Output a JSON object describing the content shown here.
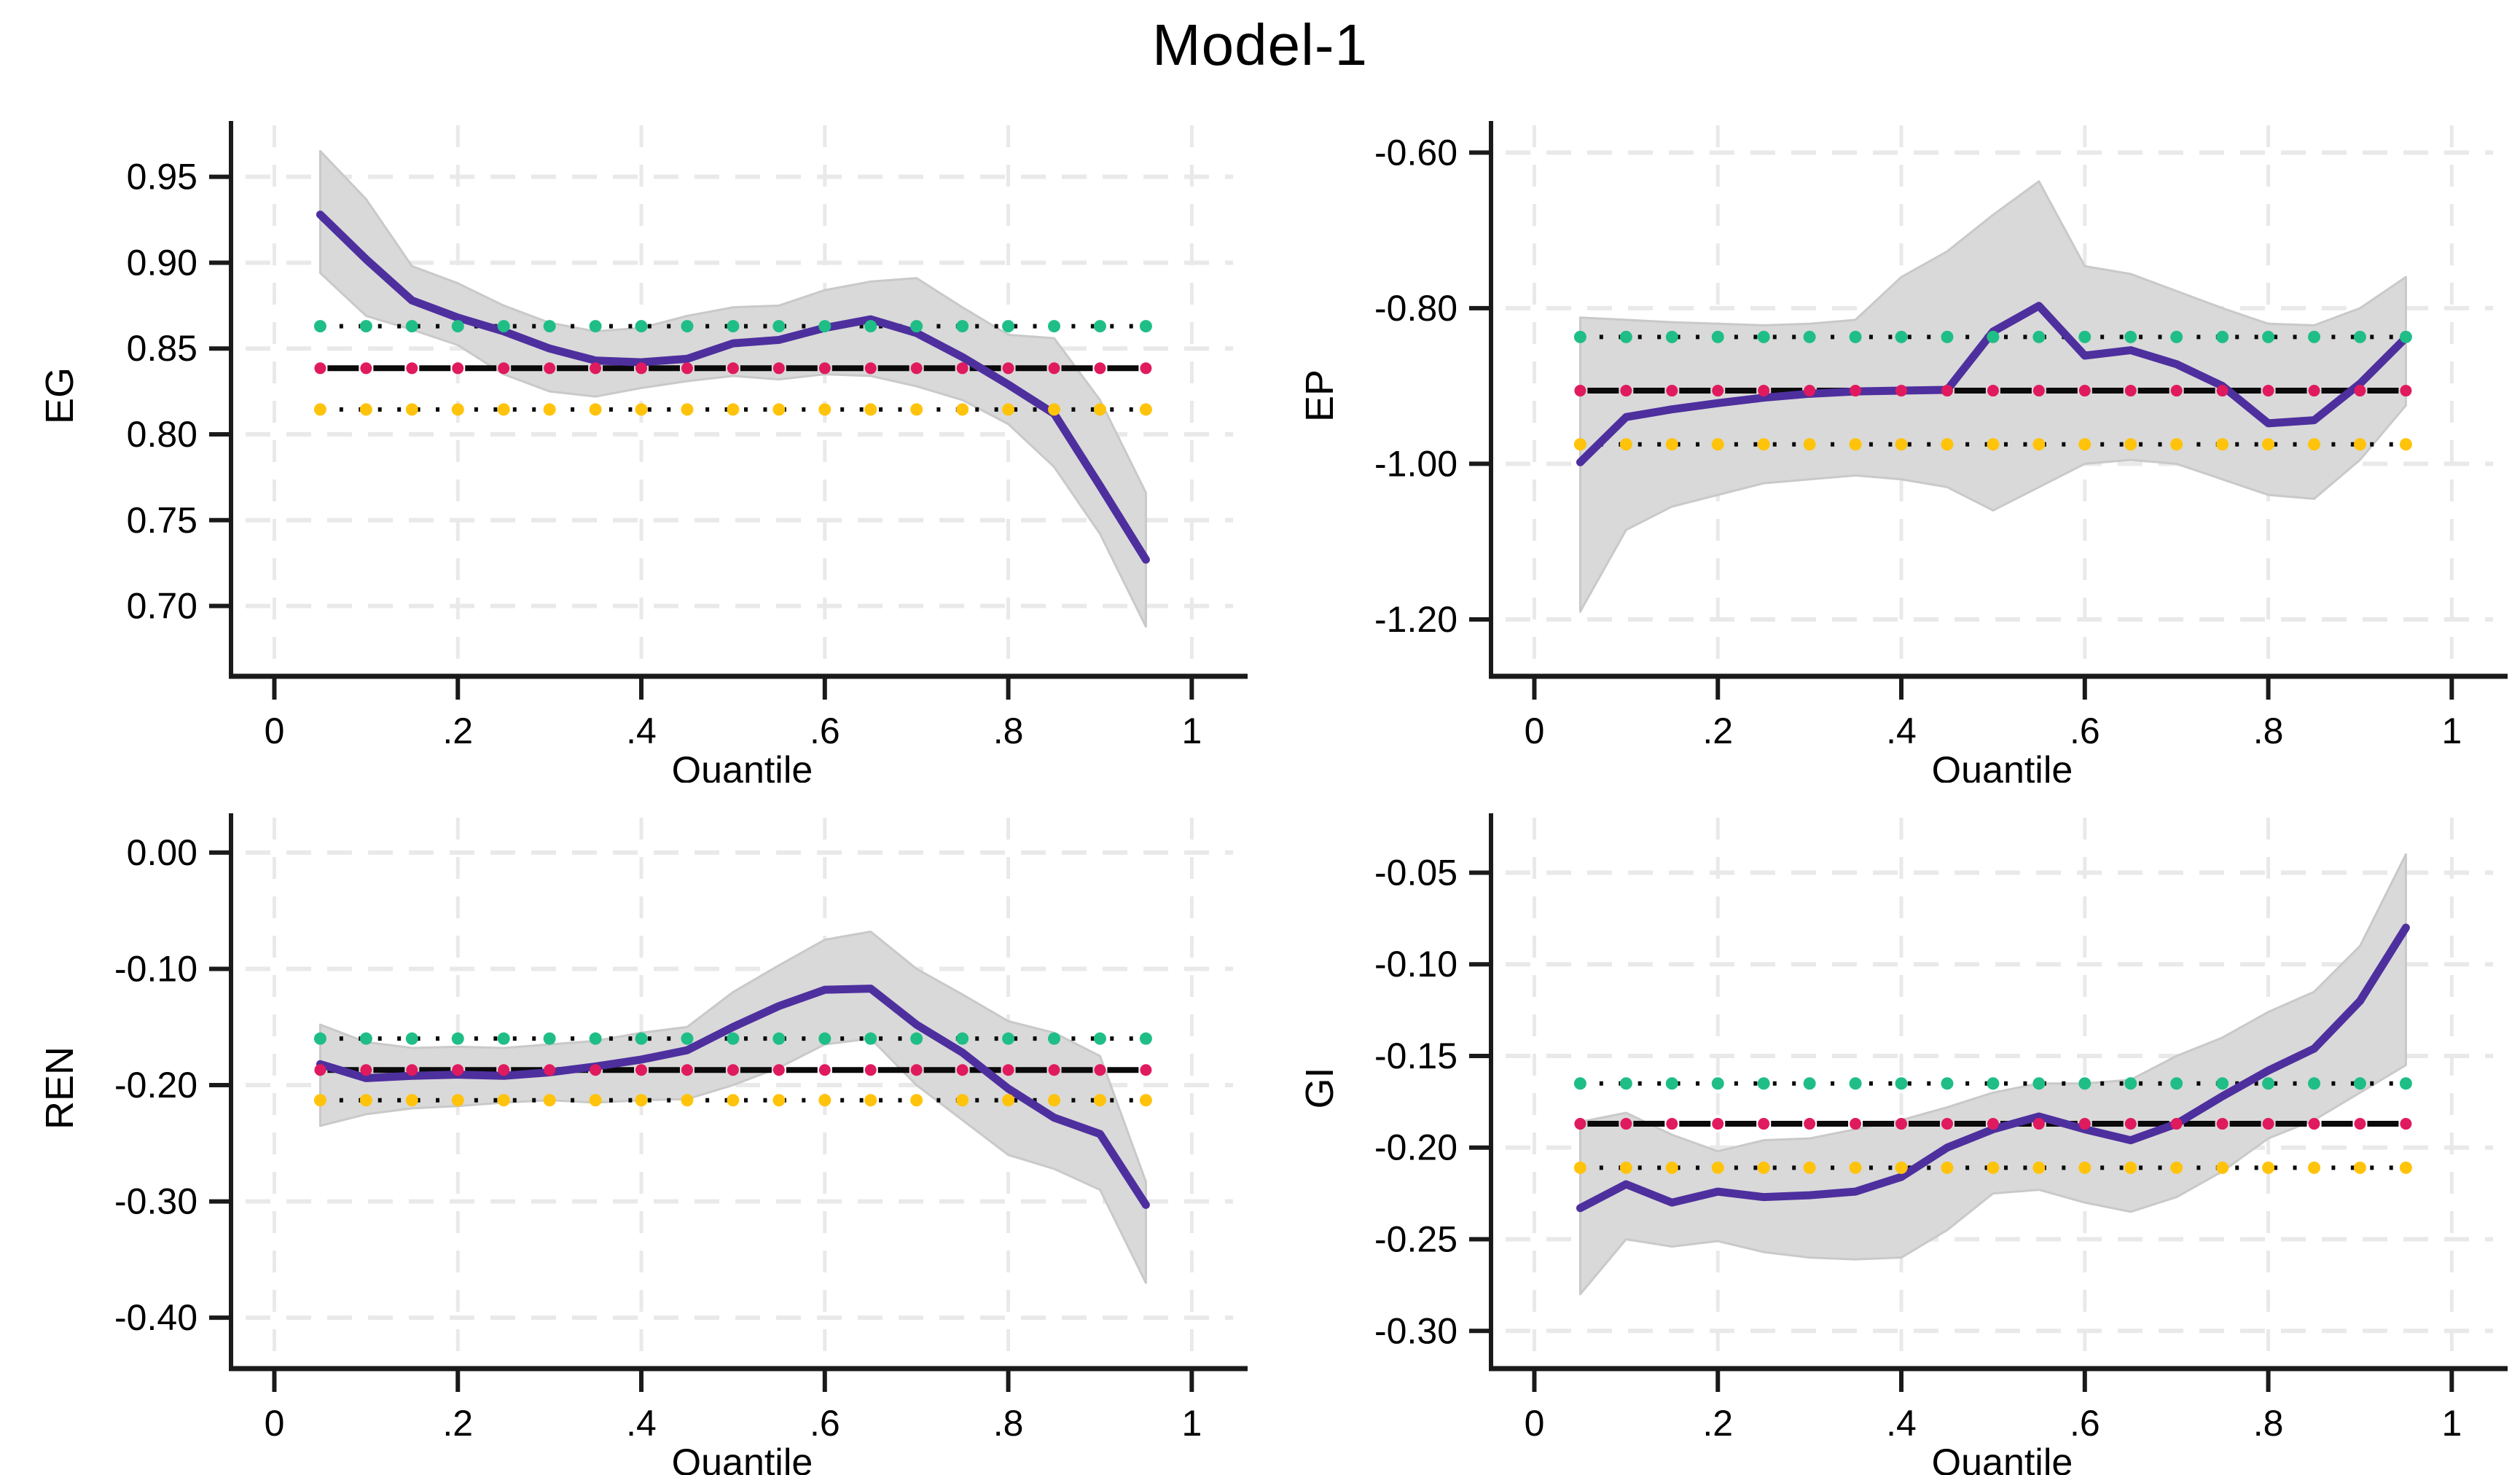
{
  "title": "Model-1",
  "colors": {
    "line": "#4e2f9e",
    "band": "#d9d9d9",
    "band_edge": "#c9c9c9",
    "upper_ci_dot": "#1fbe86",
    "lower_ci_dot": "#ffc30b",
    "estimate_dot": "#e01a5e",
    "ref_black": "#0a0a0a",
    "grid": "#e9e9e9",
    "axis": "#1a1a1a",
    "text": "#000000"
  },
  "chart_data": [
    {
      "type": "line",
      "name": "EG",
      "ylabel": "EG",
      "xlabel": "Quantile",
      "ylim": [
        0.665,
        0.98
      ],
      "yticks": [
        {
          "v": 0.95,
          "label": "0.95"
        },
        {
          "v": 0.9,
          "label": "0.90"
        },
        {
          "v": 0.85,
          "label": "0.85"
        },
        {
          "v": 0.8,
          "label": "0.80"
        },
        {
          "v": 0.75,
          "label": "0.75"
        },
        {
          "v": 0.7,
          "label": "0.70"
        }
      ],
      "xticks": [
        {
          "v": 0,
          "label": "0"
        },
        {
          "v": 0.2,
          "label": ".2"
        },
        {
          "v": 0.4,
          "label": ".4"
        },
        {
          "v": 0.6,
          "label": ".6"
        },
        {
          "v": 0.8,
          "label": ".8"
        },
        {
          "v": 1,
          "label": "1"
        }
      ],
      "x": [
        0.05,
        0.1,
        0.15,
        0.2,
        0.25,
        0.3,
        0.35,
        0.4,
        0.45,
        0.5,
        0.55,
        0.6,
        0.65,
        0.7,
        0.75,
        0.8,
        0.85,
        0.9,
        0.95
      ],
      "line": [
        0.928,
        0.902,
        0.878,
        0.868,
        0.86,
        0.85,
        0.843,
        0.842,
        0.844,
        0.853,
        0.855,
        0.862,
        0.867,
        0.859,
        0.845,
        0.829,
        0.812,
        0.77,
        0.727
      ],
      "band_upper": [
        0.965,
        0.937,
        0.898,
        0.888,
        0.875,
        0.865,
        0.86,
        0.862,
        0.869,
        0.874,
        0.875,
        0.884,
        0.889,
        0.891,
        0.874,
        0.858,
        0.856,
        0.82,
        0.766
      ],
      "band_lower": [
        0.894,
        0.869,
        0.861,
        0.852,
        0.835,
        0.825,
        0.822,
        0.827,
        0.831,
        0.834,
        0.832,
        0.835,
        0.834,
        0.828,
        0.82,
        0.806,
        0.781,
        0.742,
        0.688
      ],
      "ref_lines": {
        "upper_ci": 0.863,
        "estimate": 0.8385,
        "lower_ci": 0.8145
      }
    },
    {
      "type": "line",
      "name": "EP",
      "ylabel": "EP",
      "xlabel": "Quantile",
      "ylim": [
        -1.26,
        -0.565
      ],
      "yticks": [
        {
          "v": -0.6,
          "label": "-0.60"
        },
        {
          "v": -0.8,
          "label": "-0.80"
        },
        {
          "v": -1.0,
          "label": "-1.00"
        },
        {
          "v": -1.2,
          "label": "-1.20"
        }
      ],
      "xticks": [
        {
          "v": 0,
          "label": "0"
        },
        {
          "v": 0.2,
          "label": ".2"
        },
        {
          "v": 0.4,
          "label": ".4"
        },
        {
          "v": 0.6,
          "label": ".6"
        },
        {
          "v": 0.8,
          "label": ".8"
        },
        {
          "v": 1,
          "label": "1"
        }
      ],
      "x": [
        0.05,
        0.1,
        0.15,
        0.2,
        0.25,
        0.3,
        0.35,
        0.4,
        0.45,
        0.5,
        0.55,
        0.6,
        0.65,
        0.7,
        0.75,
        0.8,
        0.85,
        0.9,
        0.95
      ],
      "line": [
        -0.998,
        -0.94,
        -0.93,
        -0.922,
        -0.915,
        -0.91,
        -0.907,
        -0.906,
        -0.905,
        -0.83,
        -0.797,
        -0.861,
        -0.854,
        -0.872,
        -0.9,
        -0.948,
        -0.944,
        -0.897,
        -0.838
      ],
      "band_upper": [
        -0.812,
        -0.815,
        -0.818,
        -0.82,
        -0.822,
        -0.82,
        -0.815,
        -0.76,
        -0.727,
        -0.68,
        -0.637,
        -0.746,
        -0.756,
        -0.778,
        -0.8,
        -0.82,
        -0.822,
        -0.8,
        -0.76
      ],
      "band_lower": [
        -1.19,
        -1.085,
        -1.055,
        -1.04,
        -1.025,
        -1.02,
        -1.015,
        -1.02,
        -1.03,
        -1.06,
        -1.03,
        -1.0,
        -0.995,
        -1.0,
        -1.02,
        -1.04,
        -1.045,
        -0.995,
        -0.925
      ],
      "ref_lines": {
        "upper_ci": -0.837,
        "estimate": -0.906,
        "lower_ci": -0.975
      }
    },
    {
      "type": "line",
      "name": "REN",
      "ylabel": "REN",
      "xlabel": "Quantile",
      "ylim": [
        -0.435,
        0.03
      ],
      "yticks": [
        {
          "v": 0.0,
          "label": "0.00"
        },
        {
          "v": -0.1,
          "label": "-0.10"
        },
        {
          "v": -0.2,
          "label": "-0.20"
        },
        {
          "v": -0.3,
          "label": "-0.30"
        },
        {
          "v": -0.4,
          "label": "-0.40"
        }
      ],
      "xticks": [
        {
          "v": 0,
          "label": "0"
        },
        {
          "v": 0.2,
          "label": ".2"
        },
        {
          "v": 0.4,
          "label": ".4"
        },
        {
          "v": 0.6,
          "label": ".6"
        },
        {
          "v": 0.8,
          "label": ".8"
        },
        {
          "v": 1,
          "label": "1"
        }
      ],
      "x": [
        0.05,
        0.1,
        0.15,
        0.2,
        0.25,
        0.3,
        0.35,
        0.4,
        0.45,
        0.5,
        0.55,
        0.6,
        0.65,
        0.7,
        0.75,
        0.8,
        0.85,
        0.9,
        0.95
      ],
      "line": [
        -0.182,
        -0.194,
        -0.192,
        -0.191,
        -0.192,
        -0.189,
        -0.184,
        -0.178,
        -0.17,
        -0.15,
        -0.132,
        -0.118,
        -0.117,
        -0.148,
        -0.172,
        -0.203,
        -0.228,
        -0.242,
        -0.303
      ],
      "band_upper": [
        -0.148,
        -0.163,
        -0.168,
        -0.167,
        -0.168,
        -0.165,
        -0.162,
        -0.155,
        -0.15,
        -0.12,
        -0.097,
        -0.075,
        -0.068,
        -0.1,
        -0.122,
        -0.145,
        -0.155,
        -0.175,
        -0.283
      ],
      "band_lower": [
        -0.235,
        -0.225,
        -0.22,
        -0.218,
        -0.215,
        -0.213,
        -0.215,
        -0.213,
        -0.212,
        -0.2,
        -0.185,
        -0.165,
        -0.16,
        -0.2,
        -0.23,
        -0.26,
        -0.272,
        -0.29,
        -0.37
      ],
      "ref_lines": {
        "upper_ci": -0.16,
        "estimate": -0.187,
        "lower_ci": -0.213
      }
    },
    {
      "type": "line",
      "name": "GI",
      "ylabel": "GI",
      "xlabel": "Quantile",
      "ylim": [
        -0.315,
        -0.02
      ],
      "yticks": [
        {
          "v": -0.05,
          "label": "-0.05"
        },
        {
          "v": -0.1,
          "label": "-0.10"
        },
        {
          "v": -0.15,
          "label": "-0.15"
        },
        {
          "v": -0.2,
          "label": "-0.20"
        },
        {
          "v": -0.25,
          "label": "-0.25"
        },
        {
          "v": -0.3,
          "label": "-0.30"
        }
      ],
      "xticks": [
        {
          "v": 0,
          "label": "0"
        },
        {
          "v": 0.2,
          "label": ".2"
        },
        {
          "v": 0.4,
          "label": ".4"
        },
        {
          "v": 0.6,
          "label": ".6"
        },
        {
          "v": 0.8,
          "label": ".8"
        },
        {
          "v": 1,
          "label": "1"
        }
      ],
      "x": [
        0.05,
        0.1,
        0.15,
        0.2,
        0.25,
        0.3,
        0.35,
        0.4,
        0.45,
        0.5,
        0.55,
        0.6,
        0.65,
        0.7,
        0.75,
        0.8,
        0.85,
        0.9,
        0.95
      ],
      "line": [
        -0.233,
        -0.22,
        -0.23,
        -0.224,
        -0.227,
        -0.226,
        -0.224,
        -0.216,
        -0.2,
        -0.19,
        -0.183,
        -0.19,
        -0.196,
        -0.187,
        -0.172,
        -0.158,
        -0.146,
        -0.12,
        -0.08
      ],
      "band_upper": [
        -0.186,
        -0.181,
        -0.193,
        -0.202,
        -0.196,
        -0.195,
        -0.19,
        -0.185,
        -0.178,
        -0.17,
        -0.165,
        -0.165,
        -0.163,
        -0.15,
        -0.14,
        -0.126,
        -0.115,
        -0.09,
        -0.04
      ],
      "band_lower": [
        -0.28,
        -0.25,
        -0.254,
        -0.251,
        -0.257,
        -0.26,
        -0.261,
        -0.26,
        -0.245,
        -0.225,
        -0.223,
        -0.23,
        -0.235,
        -0.227,
        -0.213,
        -0.195,
        -0.185,
        -0.17,
        -0.155
      ],
      "ref_lines": {
        "upper_ci": -0.165,
        "estimate": -0.187,
        "lower_ci": -0.211
      }
    }
  ]
}
